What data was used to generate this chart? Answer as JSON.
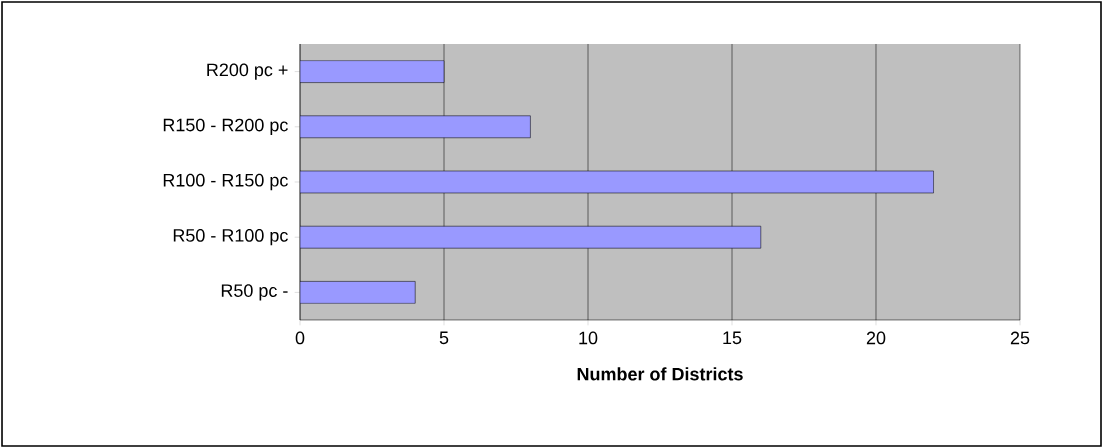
{
  "chart_data": {
    "type": "bar",
    "orientation": "horizontal",
    "xlabel": "Number of Districts",
    "categories": [
      "R200 pc +",
      "R150 - R200 pc",
      "R100 - R150 pc",
      "R50 - R100 pc",
      "R50 pc -"
    ],
    "values": [
      5,
      8,
      22,
      16,
      4
    ],
    "color": "#9999ff",
    "xlim": [
      0,
      25
    ],
    "xticks": [
      0,
      5,
      10,
      15,
      20,
      25
    ],
    "grid": "x"
  }
}
